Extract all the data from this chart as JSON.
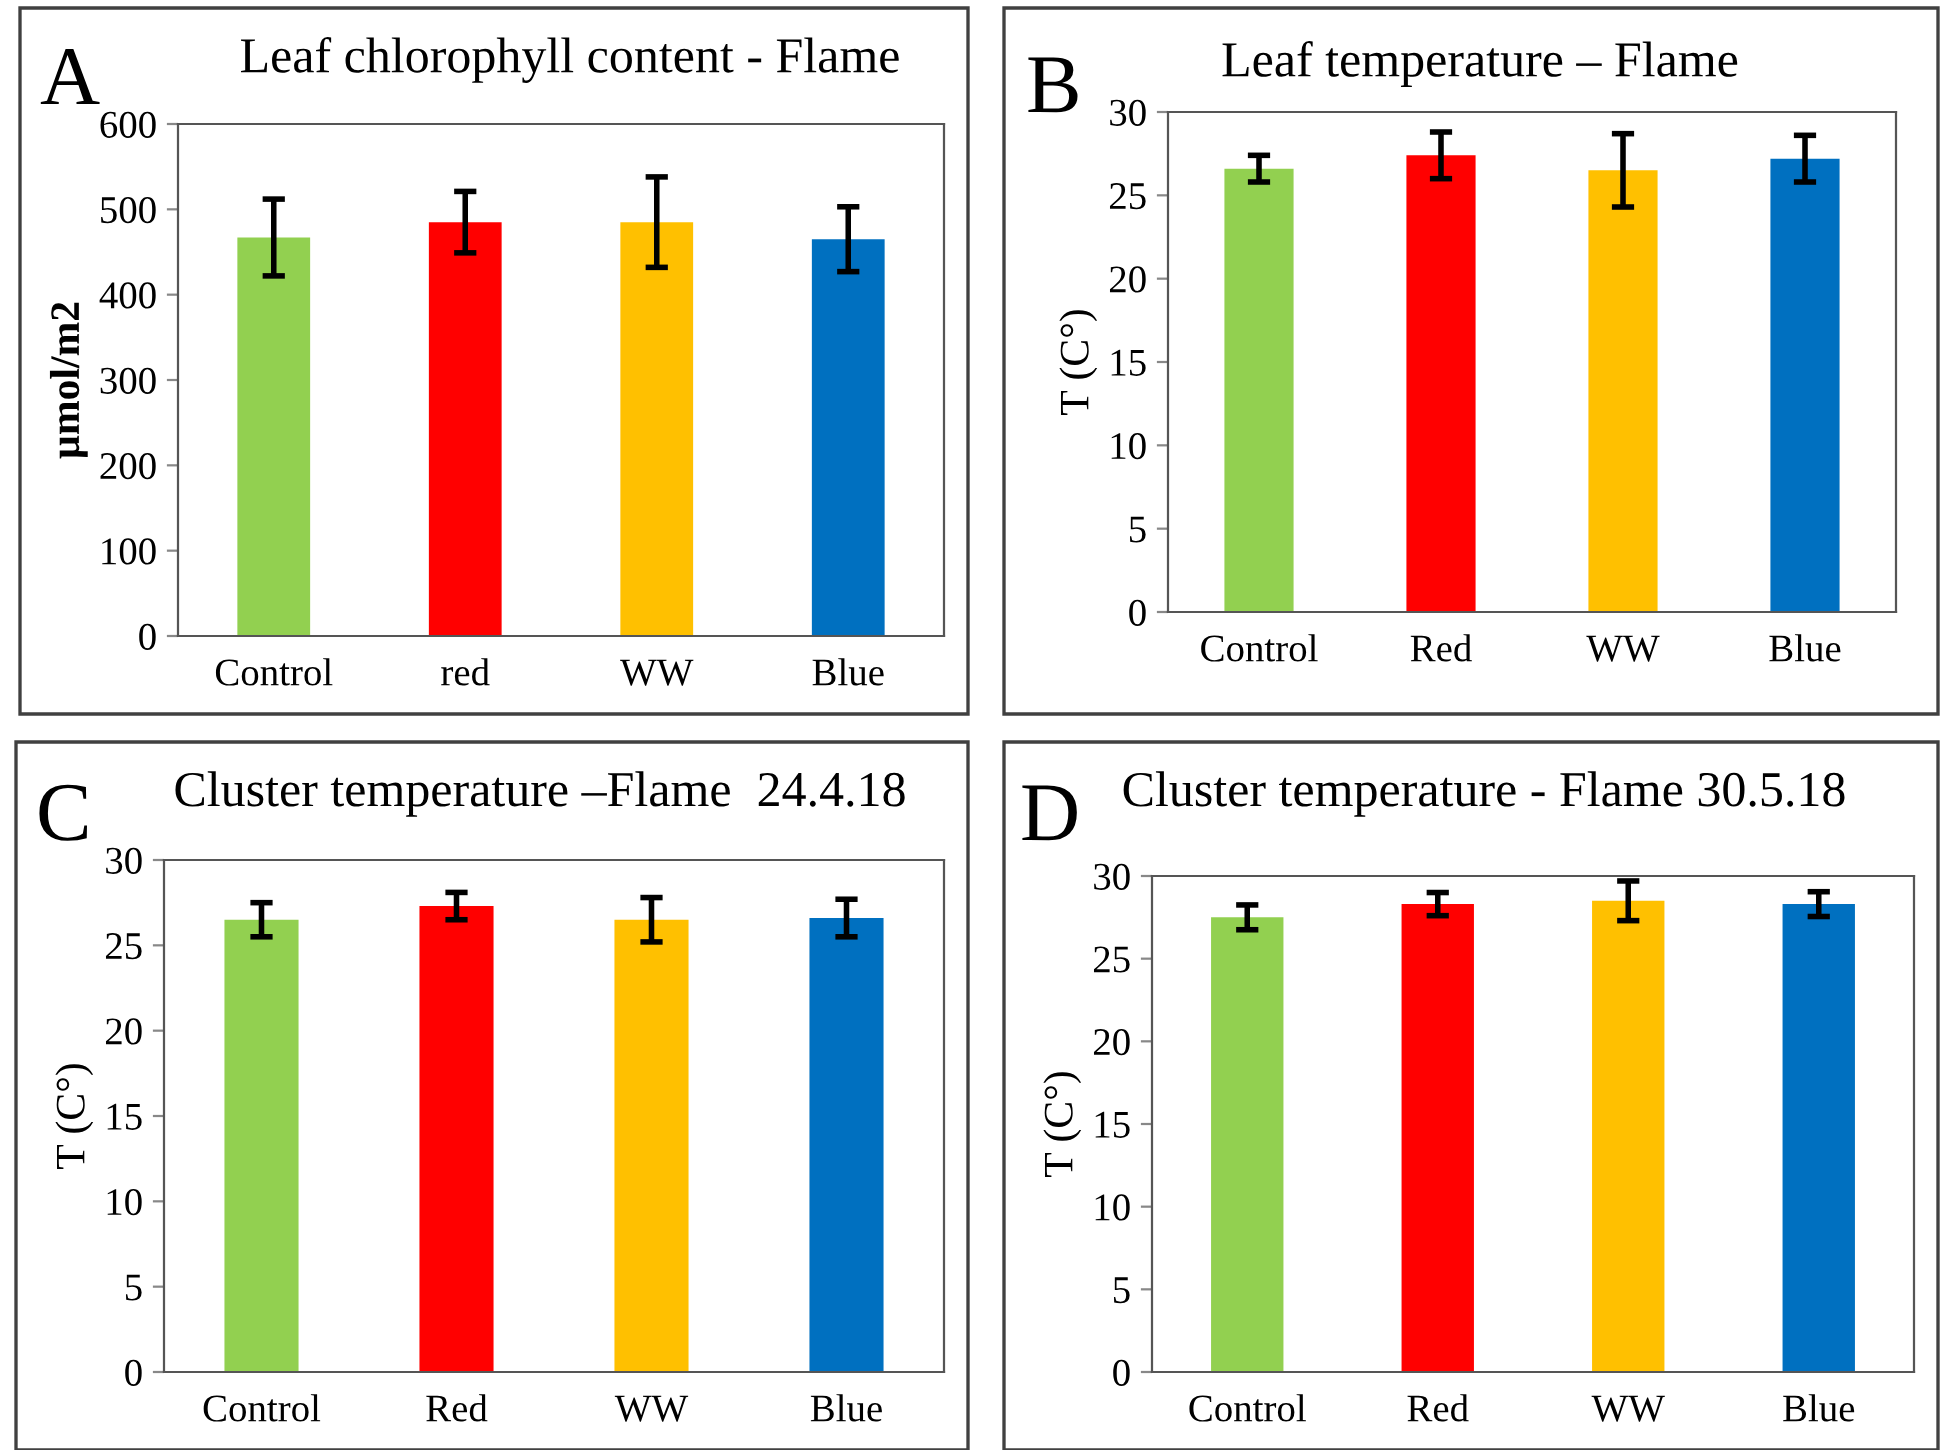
{
  "chart_data": [
    {
      "type": "bar",
      "title": "Leaf chlorophyll content - Flame",
      "ylabel": "µmol/m2",
      "annotations": [
        "A"
      ],
      "categories": [
        "Control",
        "red",
        "WW",
        "Blue"
      ],
      "values": [
        467,
        485,
        485,
        465
      ],
      "errors": [
        45,
        36,
        53,
        38
      ],
      "colors": [
        "#92d050",
        "#ff0000",
        "#ffc000",
        "#0070c0"
      ],
      "ylim": [
        0,
        600
      ],
      "yticks": [
        0,
        100,
        200,
        300,
        400,
        500,
        600
      ],
      "grid": false
    },
    {
      "type": "bar",
      "title": "Leaf temperature – Flame",
      "ylabel": "T (C°)",
      "annotations": [
        "B"
      ],
      "categories": [
        "Control",
        "Red",
        "WW",
        "Blue"
      ],
      "values": [
        26.6,
        27.4,
        26.5,
        27.2
      ],
      "errors": [
        0.8,
        1.4,
        2.2,
        1.4
      ],
      "colors": [
        "#92d050",
        "#ff0000",
        "#ffc000",
        "#0070c0"
      ],
      "ylim": [
        0,
        30
      ],
      "yticks": [
        0,
        5,
        10,
        15,
        20,
        25,
        30
      ],
      "grid": false
    },
    {
      "type": "bar",
      "title": "Cluster temperature –Flame  24.4.18",
      "ylabel": "T (C°)",
      "annotations": [
        "C"
      ],
      "categories": [
        "Control",
        "Red",
        "WW",
        "Blue"
      ],
      "values": [
        26.5,
        27.3,
        26.5,
        26.6
      ],
      "errors": [
        1.0,
        0.8,
        1.3,
        1.1
      ],
      "colors": [
        "#92d050",
        "#ff0000",
        "#ffc000",
        "#0070c0"
      ],
      "ylim": [
        0,
        30
      ],
      "yticks": [
        0,
        5,
        10,
        15,
        20,
        25,
        30
      ],
      "grid": false
    },
    {
      "type": "bar",
      "title": "Cluster temperature - Flame 30.5.18",
      "ylabel": "T (C°)",
      "annotations": [
        "D"
      ],
      "categories": [
        "Control",
        "Red",
        "WW",
        "Blue"
      ],
      "values": [
        27.5,
        28.3,
        28.5,
        28.3
      ],
      "errors": [
        0.75,
        0.7,
        1.2,
        0.75
      ],
      "colors": [
        "#92d050",
        "#ff0000",
        "#ffc000",
        "#0070c0"
      ],
      "ylim": [
        0,
        30
      ],
      "yticks": [
        0,
        5,
        10,
        15,
        20,
        25,
        30
      ],
      "grid": false
    }
  ]
}
